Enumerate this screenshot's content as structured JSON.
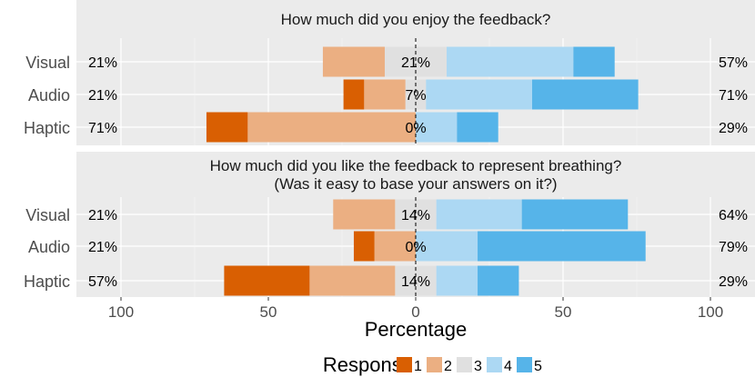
{
  "chart_data": {
    "type": "bar",
    "subtype": "diverging-stacked-likert",
    "xlabel": "Percentage",
    "x_ticks": [
      "100",
      "50",
      "0",
      "50",
      "100"
    ],
    "xlim": [
      -100,
      100
    ],
    "legend": {
      "title": "Response",
      "position": "bottom",
      "levels": [
        "1",
        "2",
        "3",
        "4",
        "5"
      ],
      "colors": [
        "#d95f02",
        "#ebaf82",
        "#e0e0e0",
        "#acd8f3",
        "#56b4e9"
      ]
    },
    "panels": [
      {
        "title_lines": [
          "How much did you enjoy the feedback?"
        ],
        "categories": [
          "Visual",
          "Audio",
          "Haptic"
        ],
        "values": [
          [
            0,
            21,
            21,
            43,
            14
          ],
          [
            7,
            14,
            7,
            36,
            36
          ],
          [
            14,
            57,
            0,
            14,
            14
          ]
        ],
        "left_labels": [
          "21%",
          "21%",
          "71%"
        ],
        "center_labels": [
          "21%",
          "7%",
          "0%"
        ],
        "right_labels": [
          "57%",
          "71%",
          "29%"
        ]
      },
      {
        "title_lines": [
          "How much did you like the feedback to represent breathing?",
          "(Was it easy to base your answers on it?)"
        ],
        "categories": [
          "Visual",
          "Audio",
          "Haptic"
        ],
        "values": [
          [
            0,
            21,
            14,
            29,
            36
          ],
          [
            7,
            14,
            0,
            21,
            57
          ],
          [
            29,
            29,
            14,
            14,
            14
          ]
        ],
        "left_labels": [
          "21%",
          "21%",
          "57%"
        ],
        "center_labels": [
          "14%",
          "0%",
          "14%"
        ],
        "right_labels": [
          "64%",
          "79%",
          "29%"
        ]
      }
    ]
  }
}
